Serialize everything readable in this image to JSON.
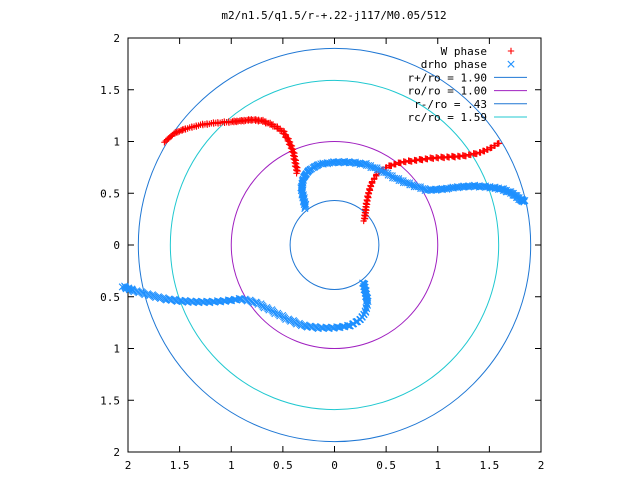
{
  "chart_data": {
    "type": "scatter",
    "title": "m2/n1.5/q1.5/r-+.22-j117/M0.05/512",
    "xlabel": "",
    "ylabel": "",
    "xlim": [
      -2,
      2
    ],
    "ylim": [
      -2,
      2
    ],
    "x_tick_labels": [
      "2",
      "1.5",
      "1",
      "0.5",
      "0",
      "0.5",
      "1",
      "1.5",
      "2"
    ],
    "y_tick_labels": [
      "2",
      "1.5",
      "1",
      "0.5",
      "0",
      "0.5",
      "1",
      "1.5",
      "2"
    ],
    "grid": false,
    "legend_position": "top-right",
    "series": [
      {
        "name": "W phase",
        "kind": "points",
        "marker": "plus",
        "color": "#ff0000",
        "arms": [
          [
            [
              -1.64,
              1.0
            ],
            [
              -1.55,
              1.08
            ],
            [
              -1.45,
              1.12
            ],
            [
              -1.3,
              1.16
            ],
            [
              -1.15,
              1.18
            ],
            [
              -1.0,
              1.19
            ],
            [
              -0.9,
              1.2
            ],
            [
              -0.8,
              1.21
            ],
            [
              -0.7,
              1.2
            ],
            [
              -0.6,
              1.16
            ],
            [
              -0.5,
              1.1
            ],
            [
              -0.44,
              1.0
            ],
            [
              -0.4,
              0.9
            ],
            [
              -0.38,
              0.8
            ],
            [
              -0.36,
              0.7
            ]
          ],
          [
            [
              1.6,
              0.99
            ],
            [
              1.5,
              0.93
            ],
            [
              1.4,
              0.89
            ],
            [
              1.25,
              0.86
            ],
            [
              1.1,
              0.85
            ],
            [
              0.95,
              0.84
            ],
            [
              0.8,
              0.82
            ],
            [
              0.65,
              0.8
            ],
            [
              0.52,
              0.76
            ],
            [
              0.42,
              0.7
            ],
            [
              0.36,
              0.6
            ],
            [
              0.33,
              0.5
            ],
            [
              0.31,
              0.4
            ],
            [
              0.3,
              0.32
            ],
            [
              0.29,
              0.24
            ]
          ]
        ]
      },
      {
        "name": "drho phase",
        "kind": "points",
        "marker": "x",
        "color": "#1e90ff",
        "arms": [
          [
            [
              -0.28,
              0.36
            ],
            [
              -0.3,
              0.45
            ],
            [
              -0.32,
              0.55
            ],
            [
              -0.3,
              0.65
            ],
            [
              -0.25,
              0.72
            ],
            [
              -0.15,
              0.78
            ],
            [
              0.0,
              0.8
            ],
            [
              0.15,
              0.8
            ],
            [
              0.3,
              0.78
            ],
            [
              0.45,
              0.72
            ],
            [
              0.6,
              0.64
            ],
            [
              0.75,
              0.58
            ],
            [
              0.9,
              0.53
            ],
            [
              1.05,
              0.54
            ],
            [
              1.2,
              0.56
            ],
            [
              1.35,
              0.57
            ],
            [
              1.5,
              0.56
            ],
            [
              1.62,
              0.54
            ],
            [
              1.72,
              0.5
            ],
            [
              1.8,
              0.44
            ],
            [
              1.84,
              0.42
            ]
          ],
          [
            [
              0.28,
              -0.36
            ],
            [
              0.3,
              -0.45
            ],
            [
              0.32,
              -0.55
            ],
            [
              0.3,
              -0.65
            ],
            [
              0.25,
              -0.72
            ],
            [
              0.15,
              -0.78
            ],
            [
              0.0,
              -0.8
            ],
            [
              -0.15,
              -0.8
            ],
            [
              -0.3,
              -0.78
            ],
            [
              -0.45,
              -0.72
            ],
            [
              -0.6,
              -0.64
            ],
            [
              -0.75,
              -0.56
            ],
            [
              -0.9,
              -0.52
            ],
            [
              -1.05,
              -0.54
            ],
            [
              -1.2,
              -0.55
            ],
            [
              -1.35,
              -0.55
            ],
            [
              -1.5,
              -0.54
            ],
            [
              -1.65,
              -0.52
            ],
            [
              -1.8,
              -0.48
            ],
            [
              -1.95,
              -0.44
            ],
            [
              -2.05,
              -0.4
            ]
          ]
        ]
      },
      {
        "name": "r+/ro = 1.90",
        "kind": "circle",
        "radius": 1.9,
        "color": "#1f77d4"
      },
      {
        "name": "ro/ro = 1.00",
        "kind": "circle",
        "radius": 1.0,
        "color": "#a020c0"
      },
      {
        "name": "r-/ro = .43",
        "kind": "circle",
        "radius": 0.43,
        "color": "#1f77d4"
      },
      {
        "name": "rc/ro = 1.59",
        "kind": "circle",
        "radius": 1.59,
        "color": "#20c8d0"
      }
    ]
  }
}
